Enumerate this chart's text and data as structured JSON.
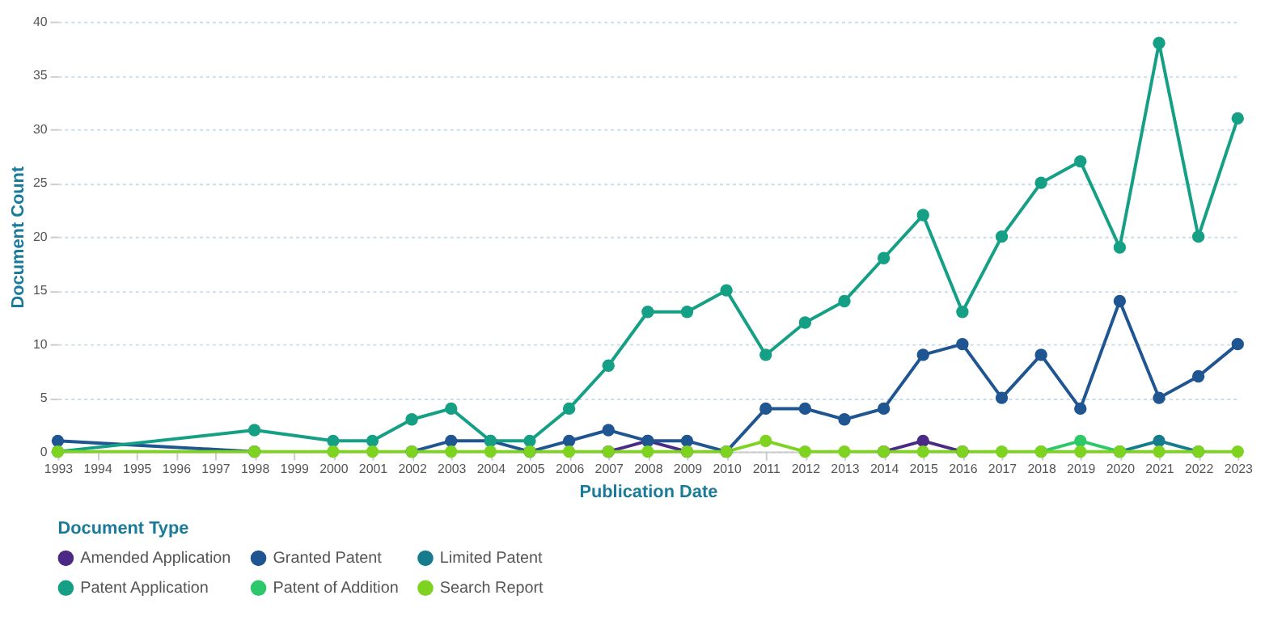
{
  "chart_data": {
    "type": "line",
    "xlabel": "Publication Date",
    "ylabel": "Document Count",
    "legend_title": "Document Type",
    "x": [
      1993,
      1998,
      2000,
      2001,
      2002,
      2003,
      2004,
      2005,
      2006,
      2007,
      2008,
      2009,
      2010,
      2011,
      2012,
      2013,
      2014,
      2015,
      2016,
      2017,
      2018,
      2019,
      2020,
      2021,
      2022,
      2023
    ],
    "series": [
      {
        "name": "Amended Application",
        "color": "#4b2a86",
        "values": [
          null,
          null,
          null,
          null,
          null,
          null,
          null,
          null,
          null,
          0,
          1,
          0,
          null,
          null,
          null,
          null,
          0,
          1,
          0,
          null,
          null,
          null,
          null,
          null,
          null,
          null
        ]
      },
      {
        "name": "Granted Patent",
        "color": "#1f5591",
        "values": [
          1,
          0,
          null,
          null,
          0,
          1,
          1,
          0,
          1,
          2,
          1,
          1,
          0,
          4,
          4,
          3,
          4,
          9,
          10,
          5,
          9,
          4,
          14,
          5,
          7,
          10
        ]
      },
      {
        "name": "Limited Patent",
        "color": "#167b8c",
        "values": [
          null,
          null,
          null,
          null,
          null,
          null,
          null,
          null,
          null,
          null,
          null,
          null,
          null,
          null,
          null,
          null,
          null,
          null,
          null,
          null,
          null,
          null,
          0,
          1,
          0,
          null
        ]
      },
      {
        "name": "Patent Application",
        "color": "#15a086",
        "values": [
          0,
          2,
          1,
          1,
          3,
          4,
          1,
          1,
          4,
          8,
          13,
          13,
          15,
          9,
          12,
          14,
          18,
          22,
          13,
          20,
          25,
          27,
          19,
          38,
          20,
          31
        ]
      },
      {
        "name": "Patent of Addition",
        "color": "#2dc86a",
        "values": [
          null,
          null,
          null,
          null,
          null,
          null,
          null,
          null,
          null,
          null,
          null,
          null,
          null,
          null,
          null,
          null,
          null,
          null,
          null,
          null,
          0,
          1,
          0,
          null,
          null,
          null
        ]
      },
      {
        "name": "Search Report",
        "color": "#7ed321",
        "values": [
          0,
          0,
          0,
          0,
          0,
          0,
          0,
          0,
          0,
          0,
          0,
          0,
          0,
          1,
          0,
          0,
          0,
          0,
          0,
          0,
          0,
          0,
          0,
          0,
          0,
          0
        ]
      }
    ],
    "xlim": [
      1993,
      2023
    ],
    "xticks": [
      1993,
      1994,
      1995,
      1996,
      1997,
      1998,
      1999,
      2000,
      2001,
      2002,
      2003,
      2004,
      2005,
      2006,
      2007,
      2008,
      2009,
      2010,
      2011,
      2012,
      2013,
      2014,
      2015,
      2016,
      2017,
      2018,
      2019,
      2020,
      2021,
      2022,
      2023
    ],
    "ylim": [
      0,
      40
    ],
    "yticks": [
      0,
      5,
      10,
      15,
      20,
      25,
      30,
      35,
      40
    ],
    "grid": "y",
    "legend": "bottom",
    "marker": "circle",
    "line_style": "solid"
  }
}
